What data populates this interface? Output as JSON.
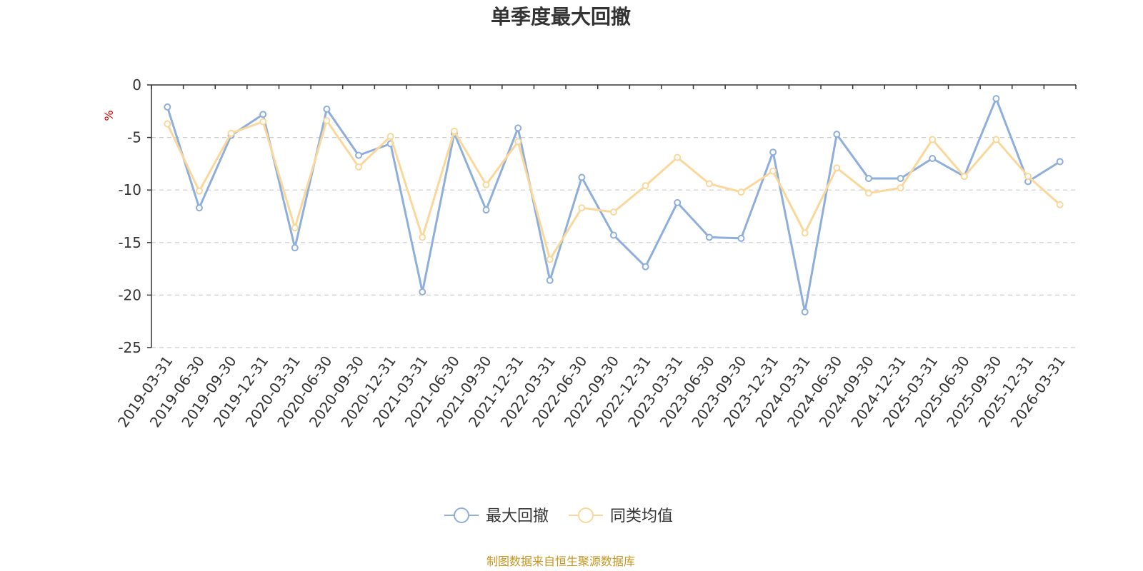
{
  "chart_data": {
    "type": "line",
    "title": "单季度最大回撤",
    "ylabel": "%",
    "ylim": [
      -25,
      0
    ],
    "yticks": [
      0,
      -5,
      -10,
      -15,
      -20,
      -25
    ],
    "grid": true,
    "legend_position": "bottom-center",
    "categories": [
      "2019-03-31",
      "2019-06-30",
      "2019-09-30",
      "2019-12-31",
      "2020-03-31",
      "2020-06-30",
      "2020-09-30",
      "2020-12-31",
      "2021-03-31",
      "2021-06-30",
      "2021-09-30",
      "2021-12-31",
      "2022-03-31",
      "2022-06-30",
      "2022-09-30",
      "2022-12-31",
      "2023-03-31",
      "2023-06-30",
      "2023-09-30",
      "2023-12-31",
      "2024-03-31",
      "2024-06-30",
      "2024-09-30",
      "2024-12-31",
      "2025-03-31",
      "2025-06-30",
      "2025-09-30",
      "2025-12-31",
      "2026-03-31"
    ],
    "series": [
      {
        "name": "最大回撤",
        "color": "#8eaedb",
        "values": [
          -2.1,
          -11.7,
          -4.8,
          -2.8,
          -15.5,
          -2.3,
          -6.7,
          -5.6,
          -19.7,
          -4.6,
          -11.9,
          -4.1,
          -18.6,
          -8.8,
          -14.3,
          -17.3,
          -11.2,
          -14.5,
          -14.6,
          -6.4,
          -21.6,
          -4.7,
          -8.9,
          -8.9,
          -7.0,
          -8.7,
          -1.3,
          -9.2,
          -7.3
        ]
      },
      {
        "name": "同类均值",
        "color": "#fad79b",
        "values": [
          -3.7,
          -10.1,
          -4.6,
          -3.5,
          -13.6,
          -3.4,
          -7.8,
          -4.9,
          -14.5,
          -4.4,
          -9.5,
          -5.4,
          -16.6,
          -11.7,
          -12.1,
          -9.6,
          -6.9,
          -9.4,
          -10.2,
          -8.2,
          -14.1,
          -7.9,
          -10.3,
          -9.8,
          -5.2,
          -8.7,
          -5.2,
          -8.7,
          -11.4
        ]
      }
    ]
  },
  "footer": {
    "source": "制图数据来自恒生聚源数据库"
  }
}
